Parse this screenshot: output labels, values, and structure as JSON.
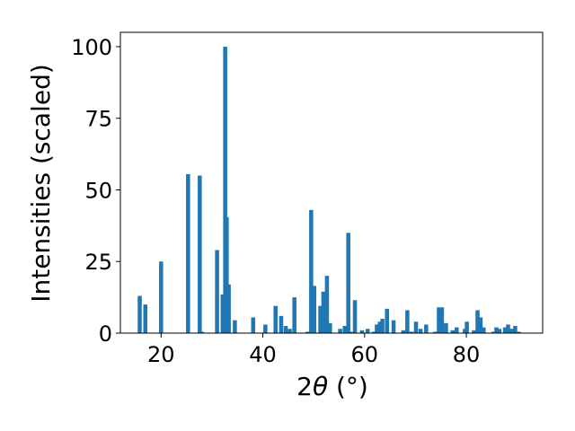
{
  "chart_data": {
    "type": "bar",
    "title": "",
    "xlabel": {
      "pre": "2",
      "theta": "θ",
      "post": " (°)"
    },
    "ylabel": "Intensities (scaled)",
    "xlim": [
      12,
      95
    ],
    "ylim": [
      0,
      105
    ],
    "xticks": [
      20,
      40,
      60,
      80
    ],
    "yticks": [
      0,
      25,
      50,
      75,
      100
    ],
    "bar_width": 0.8,
    "color": "#1f77b4",
    "grid": false,
    "x": [
      15.8,
      16.9,
      20.0,
      25.3,
      27.6,
      28.0,
      31.0,
      32.1,
      32.6,
      32.9,
      33.3,
      34.5,
      38.1,
      40.5,
      42.5,
      43.6,
      44.5,
      45.3,
      46.2,
      48.8,
      49.5,
      50.1,
      51.3,
      51.9,
      52.6,
      53.2,
      55.2,
      56.1,
      56.8,
      57.3,
      58.1,
      59.5,
      60.6,
      61.8,
      62.4,
      63.0,
      63.5,
      64.4,
      65.7,
      67.6,
      68.4,
      69.2,
      70.1,
      71.0,
      72.1,
      73.9,
      74.6,
      75.2,
      76.0,
      77.3,
      78.1,
      79.7,
      80.1,
      81.5,
      82.2,
      82.8,
      83.4,
      85.3,
      85.9,
      86.5,
      87.6,
      88.2,
      88.9,
      89.6,
      90.3
    ],
    "values": [
      13,
      10,
      25,
      55.5,
      55,
      0.5,
      29,
      13.5,
      100,
      40.5,
      17,
      4.5,
      5.5,
      3,
      9.5,
      6,
      2.5,
      1.5,
      12.5,
      0.5,
      43,
      16.5,
      9.5,
      14.5,
      20,
      3.5,
      1.5,
      2.5,
      35,
      0.5,
      11.5,
      1,
      1.5,
      0.5,
      3,
      4,
      5,
      8.5,
      4.5,
      1,
      8,
      0.5,
      4,
      1.5,
      3,
      0.5,
      9,
      9,
      3.5,
      1,
      2,
      1.5,
      4,
      1,
      8,
      5.5,
      2,
      0.5,
      2,
      1.5,
      2,
      3,
      1.5,
      2.5,
      0.5
    ]
  }
}
